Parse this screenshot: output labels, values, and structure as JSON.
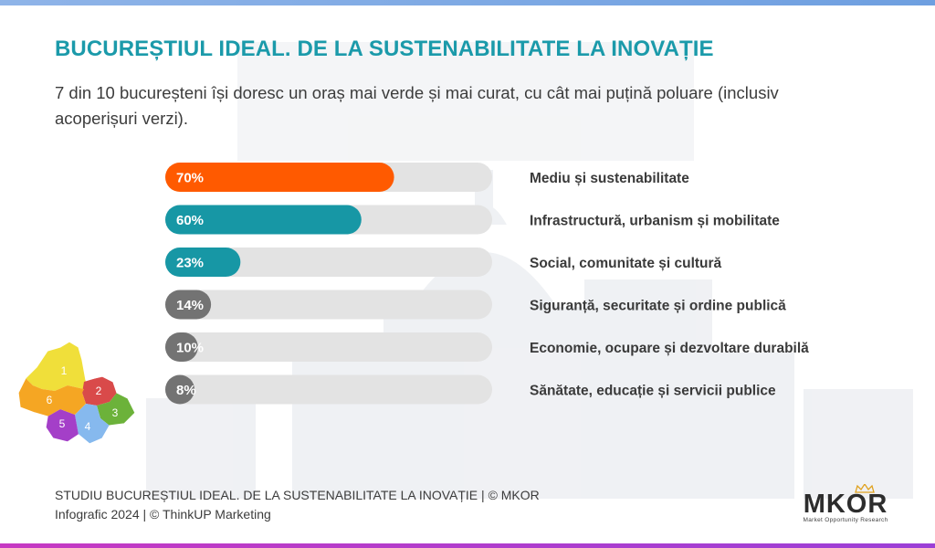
{
  "header": {
    "title": "BUCUREȘTIUL IDEAL. DE LA SUSTENABILITATE LA INOVAȚIE",
    "subtitle": "7 din 10 bucureșteni își doresc un oraș mai verde și mai curat, cu cât mai puțină poluare (inclusiv acoperișuri verzi)."
  },
  "chart_data": {
    "type": "bar",
    "orientation": "horizontal",
    "xlim": [
      0,
      100
    ],
    "categories": [
      "Mediu și sustenabilitate",
      "Infrastructură, urbanism și mobilitate",
      "Social, comunitate și cultură",
      "Siguranță, securitate și ordine publică",
      "Economie, ocupare și dezvoltare durabilă",
      "Sănătate, educație și servicii publice"
    ],
    "values": [
      70,
      60,
      23,
      14,
      10,
      8
    ],
    "value_labels": [
      "70%",
      "60%",
      "23%",
      "14%",
      "10%",
      "8%"
    ],
    "bar_colors": [
      "#ff5a00",
      "#1797a5",
      "#1797a5",
      "#737373",
      "#737373",
      "#737373"
    ],
    "track_color": "#e3e3e3"
  },
  "map": {
    "sectors": [
      {
        "label": "1",
        "color": "#f0df3a"
      },
      {
        "label": "2",
        "color": "#d94a4a"
      },
      {
        "label": "3",
        "color": "#6cb23a"
      },
      {
        "label": "4",
        "color": "#86b9ee"
      },
      {
        "label": "5",
        "color": "#a43fc8"
      },
      {
        "label": "6",
        "color": "#f5a623"
      }
    ]
  },
  "footer": {
    "line1": "STUDIU BUCUREȘTIUL IDEAL. DE LA SUSTENABILITATE LA INOVAȚIE | © MKOR",
    "line2": "Infografic 2024 | © ThinkUP Marketing"
  },
  "logo": {
    "name": "MKOR",
    "tagline": "Market Opportunity Research",
    "crown_color": "#e0a21e"
  }
}
